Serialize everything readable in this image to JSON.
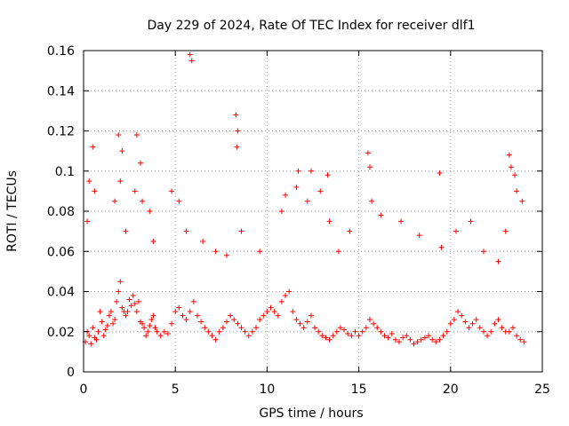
{
  "chart_data": {
    "type": "scatter",
    "title": "Day 229 of 2024, Rate Of TEC Index for receiver dlf1",
    "xlabel": "GPS time / hours",
    "ylabel": "ROTI / TECUs",
    "xlim": [
      0,
      25
    ],
    "ylim": [
      0,
      0.16
    ],
    "xticks": [
      "0",
      "5",
      "10",
      "15",
      "20",
      "25"
    ],
    "yticks": [
      "0",
      "0.02",
      "0.04",
      "0.06",
      "0.08",
      "0.1",
      "0.12",
      "0.14",
      "0.16"
    ],
    "grid": true,
    "marker": "+",
    "color": "#ff0000",
    "series": [
      {
        "values_note_free": true,
        "x": [
          0.1,
          0.2,
          0.3,
          0.4,
          0.5,
          0.6,
          0.7,
          0.8,
          0.9,
          1.0,
          1.1,
          1.2,
          1.3,
          1.4,
          1.5,
          1.6,
          1.7,
          1.8,
          1.9,
          2.0,
          2.1,
          2.2,
          2.3,
          2.4,
          2.5,
          2.6,
          2.7,
          2.8,
          2.9,
          3.0,
          3.1,
          3.2,
          3.3,
          3.4,
          3.5,
          3.6,
          3.7,
          3.8,
          3.9,
          4.0,
          4.2,
          4.4,
          4.6,
          4.8,
          5.0,
          5.2,
          5.4,
          5.6,
          5.8,
          6.0,
          6.2,
          6.4,
          6.6,
          6.8,
          7.0,
          7.2,
          7.4,
          7.6,
          7.8,
          8.0,
          8.2,
          8.4,
          8.6,
          8.8,
          9.0,
          9.2,
          9.4,
          9.6,
          9.8,
          10.0,
          10.2,
          10.4,
          10.6,
          10.8,
          11.0,
          11.2,
          11.4,
          11.6,
          11.8,
          12.0,
          12.2,
          12.4,
          12.6,
          12.8,
          13.0,
          13.2,
          13.4,
          13.6,
          13.8,
          14.0,
          14.2,
          14.4,
          14.6,
          14.8,
          15.0,
          15.2,
          15.4,
          15.6,
          15.8,
          16.0,
          16.2,
          16.4,
          16.6,
          16.8,
          17.0,
          17.2,
          17.4,
          17.6,
          17.8,
          18.0,
          18.2,
          18.4,
          18.6,
          18.8,
          19.0,
          19.2,
          19.4,
          19.6,
          19.8,
          20.0,
          20.2,
          20.4,
          20.6,
          20.8,
          21.0,
          21.2,
          21.4,
          21.6,
          21.8,
          22.0,
          22.2,
          22.4,
          22.6,
          22.8,
          23.0,
          23.2,
          23.4,
          23.6,
          23.8,
          24.0,
          0.3,
          0.5,
          1.9,
          2.1,
          2.9,
          3.1,
          5.8,
          5.9,
          8.3,
          8.4,
          8.35,
          11.7,
          12.4,
          13.3,
          15.5,
          15.6,
          19.4,
          23.2,
          23.3,
          23.5,
          0.2,
          0.6,
          1.7,
          2.0,
          2.3,
          2.8,
          3.2,
          3.6,
          3.8,
          4.8,
          5.2,
          5.6,
          6.5,
          7.2,
          7.8,
          8.6,
          9.6,
          10.8,
          11.0,
          11.6,
          12.2,
          12.9,
          13.4,
          13.9,
          14.5,
          15.7,
          16.2,
          17.3,
          18.3,
          19.5,
          20.3,
          21.1,
          21.8,
          22.6,
          23.0,
          23.6,
          23.9
        ],
        "y": [
          0.015,
          0.02,
          0.018,
          0.014,
          0.022,
          0.017,
          0.016,
          0.02,
          0.03,
          0.025,
          0.018,
          0.021,
          0.023,
          0.028,
          0.03,
          0.024,
          0.026,
          0.035,
          0.04,
          0.045,
          0.032,
          0.03,
          0.028,
          0.03,
          0.036,
          0.033,
          0.038,
          0.034,
          0.03,
          0.035,
          0.025,
          0.024,
          0.022,
          0.018,
          0.02,
          0.023,
          0.026,
          0.028,
          0.022,
          0.02,
          0.018,
          0.02,
          0.019,
          0.024,
          0.03,
          0.032,
          0.028,
          0.026,
          0.03,
          0.035,
          0.028,
          0.025,
          0.022,
          0.02,
          0.018,
          0.016,
          0.02,
          0.022,
          0.025,
          0.028,
          0.026,
          0.024,
          0.022,
          0.02,
          0.018,
          0.02,
          0.022,
          0.026,
          0.028,
          0.03,
          0.032,
          0.03,
          0.028,
          0.035,
          0.038,
          0.04,
          0.03,
          0.026,
          0.024,
          0.022,
          0.025,
          0.028,
          0.022,
          0.02,
          0.018,
          0.017,
          0.016,
          0.018,
          0.02,
          0.022,
          0.021,
          0.019,
          0.018,
          0.02,
          0.018,
          0.02,
          0.022,
          0.026,
          0.024,
          0.022,
          0.02,
          0.018,
          0.017,
          0.019,
          0.016,
          0.015,
          0.017,
          0.018,
          0.016,
          0.014,
          0.015,
          0.016,
          0.017,
          0.018,
          0.016,
          0.015,
          0.016,
          0.018,
          0.02,
          0.024,
          0.026,
          0.03,
          0.028,
          0.025,
          0.022,
          0.024,
          0.026,
          0.022,
          0.02,
          0.018,
          0.02,
          0.024,
          0.026,
          0.022,
          0.02,
          0.02,
          0.022,
          0.018,
          0.016,
          0.015,
          0.095,
          0.112,
          0.118,
          0.11,
          0.118,
          0.104,
          0.158,
          0.155,
          0.128,
          0.12,
          0.112,
          0.1,
          0.1,
          0.098,
          0.109,
          0.102,
          0.099,
          0.108,
          0.102,
          0.098,
          0.075,
          0.09,
          0.085,
          0.095,
          0.07,
          0.09,
          0.085,
          0.08,
          0.065,
          0.09,
          0.085,
          0.07,
          0.065,
          0.06,
          0.058,
          0.07,
          0.06,
          0.08,
          0.088,
          0.092,
          0.085,
          0.09,
          0.075,
          0.06,
          0.07,
          0.085,
          0.078,
          0.075,
          0.068,
          0.062,
          0.07,
          0.075,
          0.06,
          0.055,
          0.07,
          0.09,
          0.085
        ]
      }
    ]
  }
}
